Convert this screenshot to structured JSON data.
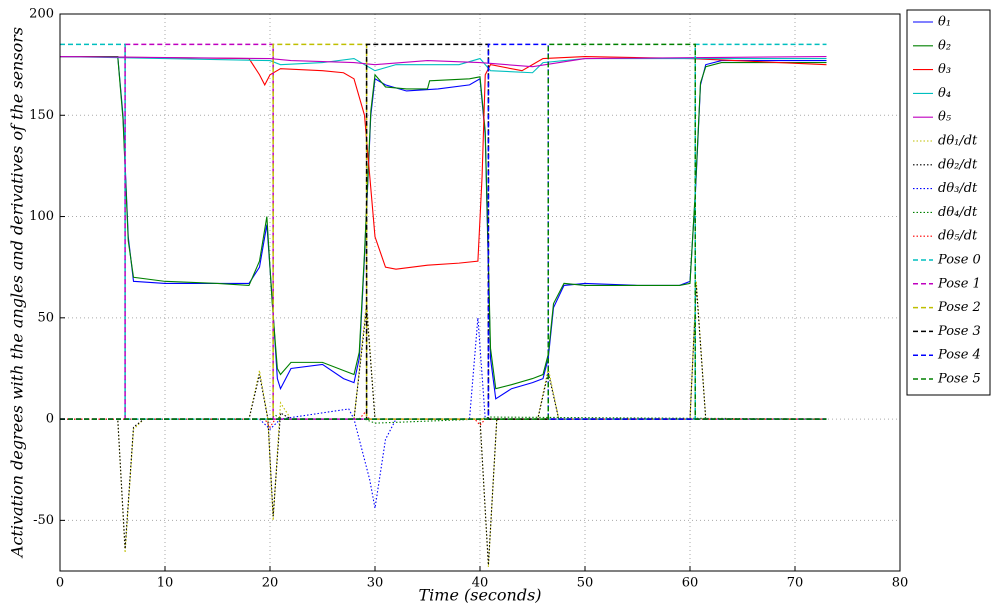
{
  "chart_data": {
    "type": "line",
    "xlabel": "Time (seconds)",
    "ylabel": "Activation degrees with the angles and derivatives of the sensors",
    "xlim": [
      0,
      80
    ],
    "ylim": [
      -75,
      200
    ],
    "xticks": [
      0,
      10,
      20,
      30,
      40,
      50,
      60,
      70,
      80
    ],
    "yticks": [
      -50,
      0,
      50,
      100,
      150,
      200
    ],
    "grid": true,
    "legend": "outside right",
    "series": [
      {
        "name": "θ₁",
        "color": "#0000ff",
        "dash": "solid",
        "x": [
          0,
          5.5,
          6.0,
          6.5,
          7,
          10,
          15,
          18,
          19,
          19.7,
          20.2,
          20.7,
          21,
          22,
          25,
          27,
          28,
          28.5,
          29,
          29.6,
          30,
          31,
          33,
          36,
          39,
          40,
          40.5,
          41,
          41.5,
          43,
          45,
          46,
          46.5,
          47,
          48,
          50,
          55,
          59,
          60,
          60.5,
          61,
          61.5,
          63,
          73
        ],
        "values": [
          179,
          179,
          150,
          90,
          68,
          67,
          67,
          67,
          75,
          96,
          60,
          20,
          15,
          25,
          27,
          20,
          18,
          30,
          80,
          150,
          168,
          165,
          162,
          163,
          165,
          168,
          140,
          30,
          10,
          15,
          18,
          20,
          30,
          55,
          66,
          67,
          66,
          66,
          68,
          110,
          165,
          175,
          177,
          177
        ]
      },
      {
        "name": "θ₂",
        "color": "#008000",
        "dash": "solid",
        "x": [
          0,
          5.5,
          6.0,
          6.5,
          7,
          10,
          15,
          18,
          19,
          19.7,
          20.2,
          20.7,
          21,
          22,
          25,
          27,
          28,
          28.5,
          29,
          29.6,
          30,
          31,
          33,
          35,
          35.2,
          39,
          40,
          40.5,
          41,
          41.5,
          43,
          45,
          46,
          46.5,
          47,
          48,
          50,
          55,
          59,
          60,
          60.5,
          61,
          61.5,
          63,
          73
        ],
        "values": [
          179,
          179,
          148,
          88,
          70,
          68,
          67,
          66,
          78,
          100,
          58,
          25,
          22,
          28,
          28,
          24,
          22,
          33,
          82,
          152,
          170,
          164,
          163,
          163,
          167,
          168,
          169,
          142,
          35,
          15,
          17,
          20,
          22,
          32,
          57,
          67,
          66,
          66,
          66,
          67,
          112,
          166,
          174,
          176,
          176
        ]
      },
      {
        "name": "θ₃",
        "color": "#ff0000",
        "dash": "solid",
        "x": [
          0,
          18,
          19,
          19.5,
          20,
          21,
          25,
          27,
          28,
          29,
          29.5,
          30,
          31,
          32,
          35,
          38,
          39.8,
          40.2,
          40.5,
          41,
          44,
          45,
          46,
          50,
          60,
          73
        ],
        "values": [
          179,
          178,
          170,
          165,
          170,
          173,
          172,
          171,
          168,
          150,
          120,
          90,
          75,
          74,
          76,
          77,
          78,
          120,
          170,
          175,
          172,
          175,
          178,
          179,
          178,
          175
        ]
      },
      {
        "name": "θ₄",
        "color": "#00bfbf",
        "dash": "solid",
        "x": [
          0,
          20,
          21,
          25,
          28,
          30,
          32,
          38,
          40,
          41,
          45,
          46,
          50,
          73
        ],
        "values": [
          179,
          177,
          175,
          176,
          178,
          172,
          175,
          175,
          178,
          172,
          171,
          176,
          178,
          178
        ]
      },
      {
        "name": "θ₅",
        "color": "#bf00bf",
        "dash": "solid",
        "x": [
          0,
          20,
          22,
          28,
          30,
          35,
          40,
          45,
          50,
          73
        ],
        "values": [
          179,
          178,
          177,
          176,
          175,
          177,
          176,
          174,
          178,
          179
        ]
      },
      {
        "name": "dθ₁/dt",
        "color": "#bfbf00",
        "dash": "dotted",
        "x": [
          0,
          5.5,
          6.2,
          7,
          8,
          18,
          19,
          19.8,
          20.3,
          21,
          21.5,
          22,
          28,
          29.2,
          30,
          40,
          40.8,
          41.6,
          45.5,
          46.5,
          47.5,
          60,
          60.6,
          61.5,
          73
        ],
        "values": [
          0,
          0,
          -66,
          -5,
          0,
          0,
          24,
          0,
          -50,
          8,
          4,
          0,
          0,
          58,
          0,
          0,
          -73,
          0,
          0,
          25,
          0,
          0,
          68,
          0,
          0
        ]
      },
      {
        "name": "dθ₂/dt",
        "color": "#000000",
        "dash": "dotted",
        "x": [
          0,
          5.5,
          6.2,
          7,
          8,
          18,
          19,
          19.8,
          20.3,
          21,
          22,
          28,
          29.2,
          30,
          40,
          40.8,
          41.6,
          45.5,
          46.5,
          47.5,
          60,
          60.6,
          61.5,
          73
        ],
        "values": [
          0,
          0,
          -64,
          -4,
          0,
          0,
          22,
          0,
          -48,
          3,
          0,
          0,
          55,
          0,
          0,
          -72,
          0,
          0,
          23,
          0,
          0,
          66,
          0,
          0
        ]
      },
      {
        "name": "dθ₃/dt",
        "color": "#0000ff",
        "dash": "dotted",
        "x": [
          0,
          19,
          20,
          21,
          27.5,
          28,
          29.5,
          30,
          31,
          32,
          39,
          39.8,
          40.5,
          41,
          73
        ],
        "values": [
          0,
          0,
          -5,
          0,
          5,
          0,
          -30,
          -44,
          -10,
          0,
          0,
          50,
          0,
          0,
          0
        ]
      },
      {
        "name": "dθ₄/dt",
        "color": "#008000",
        "dash": "dotted",
        "x": [
          0,
          20,
          20.5,
          21,
          29,
          30,
          40,
          41,
          73
        ],
        "values": [
          0,
          0,
          2,
          0,
          0,
          -2,
          0,
          1,
          0
        ]
      },
      {
        "name": "dθ₅/dt",
        "color": "#ff0000",
        "dash": "dotted",
        "x": [
          0,
          19.5,
          20,
          20.5,
          28.5,
          29,
          29.5,
          39.5,
          40,
          40.5,
          73
        ],
        "values": [
          0,
          0,
          -4,
          0,
          0,
          3,
          0,
          0,
          -3,
          0,
          0
        ]
      },
      {
        "name": "Pose 0",
        "color": "#00bfbf",
        "dash": "dashed",
        "x": [
          0,
          6.2,
          6.2,
          60.5,
          60.5,
          73
        ],
        "values": [
          185,
          185,
          0,
          0,
          185,
          185
        ]
      },
      {
        "name": "Pose 1",
        "color": "#bf00bf",
        "dash": "dashed",
        "x": [
          0,
          6.2,
          6.2,
          20.3,
          20.3,
          73
        ],
        "values": [
          0,
          0,
          185,
          185,
          0,
          0
        ]
      },
      {
        "name": "Pose 2",
        "color": "#bfbf00",
        "dash": "dashed",
        "x": [
          0,
          20.3,
          20.3,
          29.2,
          29.2,
          73
        ],
        "values": [
          0,
          0,
          185,
          185,
          0,
          0
        ]
      },
      {
        "name": "Pose 3",
        "color": "#000000",
        "dash": "dashed",
        "x": [
          0,
          29.2,
          29.2,
          40.8,
          40.8,
          73
        ],
        "values": [
          0,
          0,
          185,
          185,
          0,
          0
        ]
      },
      {
        "name": "Pose 4",
        "color": "#0000ff",
        "dash": "dashed",
        "x": [
          0,
          40.8,
          40.8,
          46.5,
          46.5,
          73
        ],
        "values": [
          0,
          0,
          185,
          185,
          0,
          0
        ]
      },
      {
        "name": "Pose 5",
        "color": "#008000",
        "dash": "dashed",
        "x": [
          0,
          46.5,
          46.5,
          60.5,
          60.5,
          73
        ],
        "values": [
          0,
          0,
          185,
          185,
          0,
          0
        ]
      }
    ]
  }
}
